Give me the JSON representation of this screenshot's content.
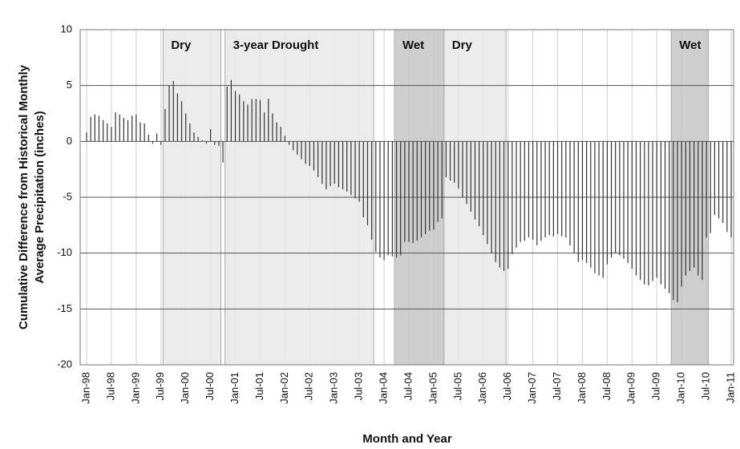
{
  "chart_data": {
    "type": "bar",
    "ylabel": [
      "Cumulative Difference from Historical Monthly",
      "Average Precipitation (inches)"
    ],
    "xlabel": "Month and Year",
    "categories": [
      "Jan-98",
      null,
      null,
      null,
      null,
      null,
      "Jul-98",
      null,
      null,
      null,
      null,
      null,
      "Jan-99",
      null,
      null,
      null,
      null,
      null,
      "Jul-99",
      null,
      null,
      null,
      null,
      null,
      "Jan-00",
      null,
      null,
      null,
      null,
      null,
      "Jul-00",
      null,
      null,
      null,
      null,
      null,
      "Jan-01",
      null,
      null,
      null,
      null,
      null,
      "Jul-01",
      null,
      null,
      null,
      null,
      null,
      "Jan-02",
      null,
      null,
      null,
      null,
      null,
      "Jul-02",
      null,
      null,
      null,
      null,
      null,
      "Jan-03",
      null,
      null,
      null,
      null,
      null,
      "Jul-03",
      null,
      null,
      null,
      null,
      null,
      "Jan-04",
      null,
      null,
      null,
      null,
      null,
      "Jul-04",
      null,
      null,
      null,
      null,
      null,
      "Jan-05",
      null,
      null,
      null,
      null,
      null,
      "Jul-05",
      null,
      null,
      null,
      null,
      null,
      "Jan-06",
      null,
      null,
      null,
      null,
      null,
      "Jul-06",
      null,
      null,
      null,
      null,
      null,
      "Jan-07",
      null,
      null,
      null,
      null,
      null,
      "Jul-07",
      null,
      null,
      null,
      null,
      null,
      "Jan-08",
      null,
      null,
      null,
      null,
      null,
      "Jul-08",
      null,
      null,
      null,
      null,
      null,
      "Jan-09",
      null,
      null,
      null,
      null,
      null,
      "Jul-09",
      null,
      null,
      null,
      null,
      null,
      "Jan-10",
      null,
      null,
      null,
      null,
      null,
      "Jul-10",
      null,
      null,
      null,
      null,
      null,
      "Jan-11"
    ],
    "values": [
      0.8,
      2.2,
      2.4,
      2.3,
      1.9,
      1.6,
      1.3,
      2.6,
      2.4,
      2.1,
      1.9,
      2.3,
      2.4,
      1.7,
      1.6,
      0.6,
      -0.2,
      0.7,
      -0.3,
      2.9,
      5.0,
      5.4,
      4.3,
      3.6,
      2.5,
      1.6,
      0.8,
      0.4,
      0.1,
      -0.2,
      1.1,
      -0.3,
      -0.4,
      -1.9,
      4.9,
      5.5,
      4.5,
      4.2,
      3.6,
      3.3,
      3.8,
      3.8,
      3.7,
      2.6,
      3.8,
      2.5,
      1.7,
      1.3,
      0.5,
      -0.3,
      -0.8,
      -1.2,
      -1.6,
      -2.0,
      -2.2,
      -2.6,
      -3.2,
      -3.8,
      -4.3,
      -4.0,
      -3.8,
      -4.1,
      -4.3,
      -4.5,
      -4.8,
      -5.1,
      -5.4,
      -6.8,
      -7.5,
      -8.8,
      -9.9,
      -10.4,
      -10.6,
      -10.2,
      -10.3,
      -10.4,
      -10.2,
      -9.0,
      -9.0,
      -9.1,
      -8.9,
      -8.6,
      -8.3,
      -8.0,
      -7.9,
      -7.2,
      -6.9,
      -3.2,
      -3.5,
      -3.7,
      -4.2,
      -5.0,
      -5.6,
      -6.3,
      -7.0,
      -7.6,
      -8.4,
      -9.2,
      -10.0,
      -10.8,
      -11.3,
      -11.6,
      -11.4,
      -10.1,
      -9.5,
      -9.0,
      -8.9,
      -8.6,
      -8.8,
      -9.3,
      -8.9,
      -8.6,
      -8.4,
      -8.5,
      -8.3,
      -8.5,
      -8.6,
      -9.3,
      -10.0,
      -10.8,
      -10.6,
      -10.9,
      -11.3,
      -11.8,
      -12.0,
      -12.2,
      -11.0,
      -10.4,
      -10.0,
      -10.2,
      -10.5,
      -10.9,
      -11.4,
      -12.0,
      -12.4,
      -12.8,
      -12.9,
      -12.5,
      -12.2,
      -12.8,
      -13.2,
      -13.6,
      -14.2,
      -14.4,
      -13.0,
      -12.0,
      -11.6,
      -11.3,
      -12.0,
      -12.4,
      -8.6,
      -8.2,
      -6.6,
      -6.9,
      -7.3,
      -8.1,
      -8.6
    ],
    "color": "#333333",
    "ylim": [
      -20,
      10
    ],
    "yticks": [
      -20,
      -15,
      -10,
      -5,
      0,
      5,
      10
    ],
    "grid": true,
    "periods": [
      {
        "label": "Dry",
        "start": 19,
        "end": 32,
        "color": "#e8e8e8"
      },
      {
        "label": "3-year Drought",
        "start": 34,
        "end": 69,
        "color": "#e8e8e8"
      },
      {
        "label": "Wet",
        "start": 75,
        "end": 86,
        "color": "#c6c6c6"
      },
      {
        "label": "Dry",
        "start": 87,
        "end": 101,
        "color": "#e8e8e8"
      },
      {
        "label": "Wet",
        "start": 142,
        "end": 150,
        "color": "#c6c6c6"
      }
    ]
  }
}
